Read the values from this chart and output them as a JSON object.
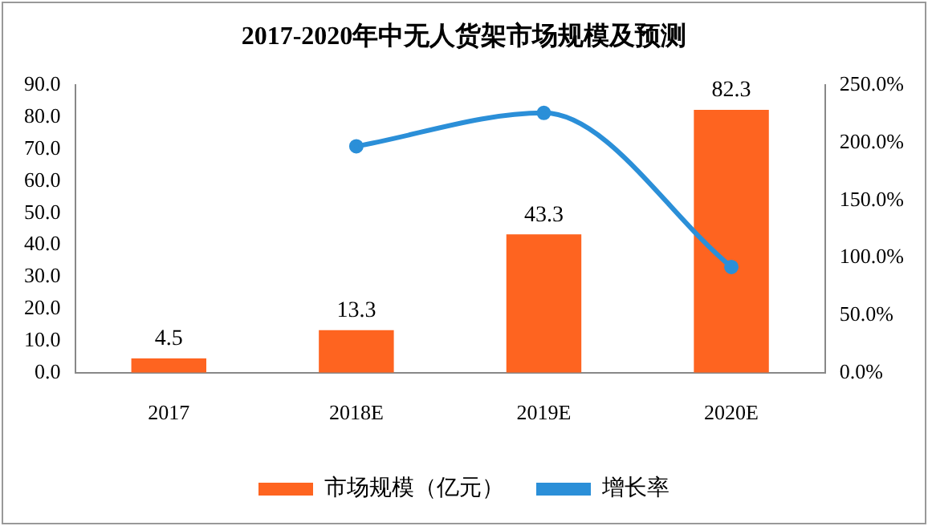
{
  "chart_data": {
    "type": "bar",
    "title": "2017-2020年中无人货架市场规模及预测",
    "categories": [
      "2017",
      "2018E",
      "2019E",
      "2020E"
    ],
    "series": [
      {
        "name": "市场规模（亿元）",
        "color": "#fe6420",
        "values": [
          4.5,
          13.3,
          43.3,
          82.3
        ]
      },
      {
        "name": "增长率",
        "type": "line",
        "axis": "y2",
        "color": "#2b8fd8",
        "values": [
          null,
          197,
          226,
          92
        ]
      }
    ],
    "value_labels": [
      "4.5",
      "13.3",
      "43.3",
      "82.3"
    ],
    "ylim": [
      0,
      90
    ],
    "yticks": [
      {
        "value": 0,
        "label": "0.0"
      },
      {
        "value": 10,
        "label": "10.0"
      },
      {
        "value": 20,
        "label": "20.0"
      },
      {
        "value": 30,
        "label": "30.0"
      },
      {
        "value": 40,
        "label": "40.0"
      },
      {
        "value": 50,
        "label": "50.0"
      },
      {
        "value": 60,
        "label": "60.0"
      },
      {
        "value": 70,
        "label": "70.0"
      },
      {
        "value": 80,
        "label": "80.0"
      },
      {
        "value": 90,
        "label": "90.0"
      }
    ],
    "y2lim": [
      0,
      250
    ],
    "y2ticks": [
      {
        "value": 0,
        "label": "0.0%"
      },
      {
        "value": 50,
        "label": "50.0%"
      },
      {
        "value": 100,
        "label": "100.0%"
      },
      {
        "value": 150,
        "label": "150.0%"
      },
      {
        "value": 200,
        "label": "200.0%"
      },
      {
        "value": 250,
        "label": "250.0%"
      }
    ],
    "grid": false,
    "legend": "bottom",
    "marker": "circle"
  }
}
